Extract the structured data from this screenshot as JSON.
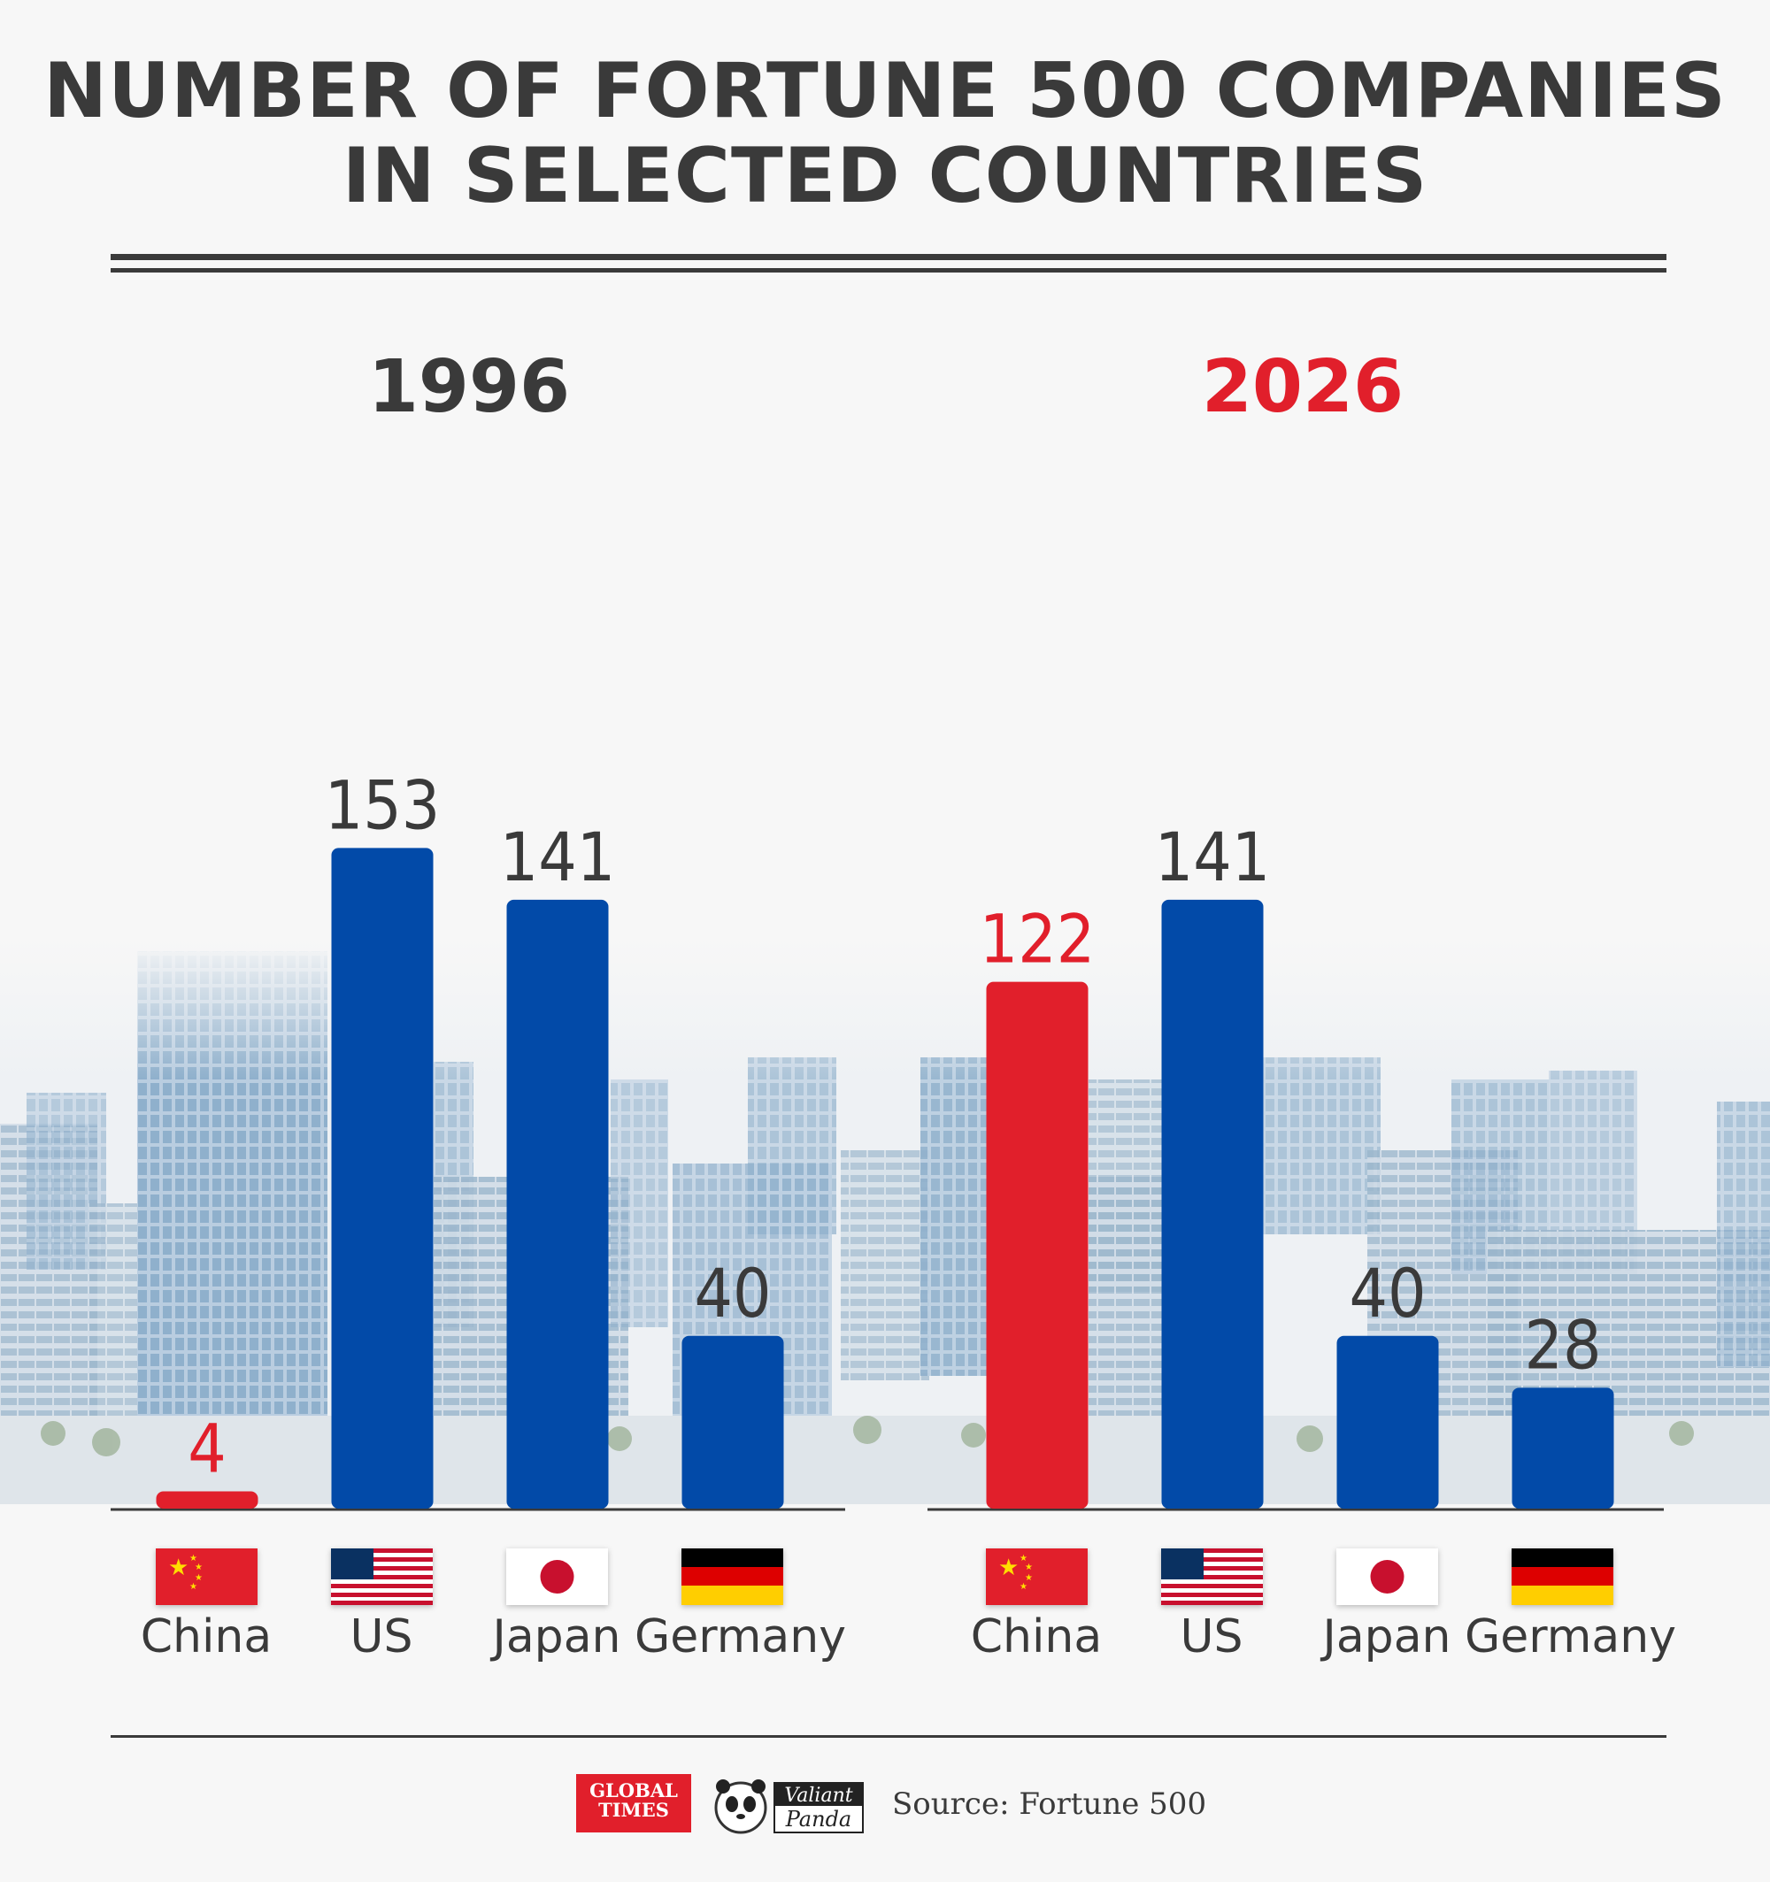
{
  "title_line1": "NUMBER OF FORTUNE 500 COMPANIES",
  "title_line2": "IN SELECTED COUNTRIES",
  "source": "Source: Fortune 500",
  "logos": {
    "global_times": "GLOBAL TIMES",
    "valiant_panda": "Valiant Panda"
  },
  "colors": {
    "highlight": "#e11f2b",
    "bar": "#024aa8",
    "text": "#3a3a3a"
  },
  "chart_data": [
    {
      "type": "bar",
      "title": "1996",
      "categories": [
        "China",
        "US",
        "Japan",
        "Germany"
      ],
      "values": [
        4,
        153,
        141,
        40
      ],
      "highlight_category": "China",
      "xlabel": "",
      "ylabel": "",
      "ylim": [
        0,
        160
      ]
    },
    {
      "type": "bar",
      "title": "2026",
      "categories": [
        "China",
        "US",
        "Japan",
        "Germany"
      ],
      "values": [
        122,
        141,
        40,
        28
      ],
      "highlight_category": "China",
      "xlabel": "",
      "ylabel": "",
      "ylim": [
        0,
        160
      ]
    }
  ]
}
